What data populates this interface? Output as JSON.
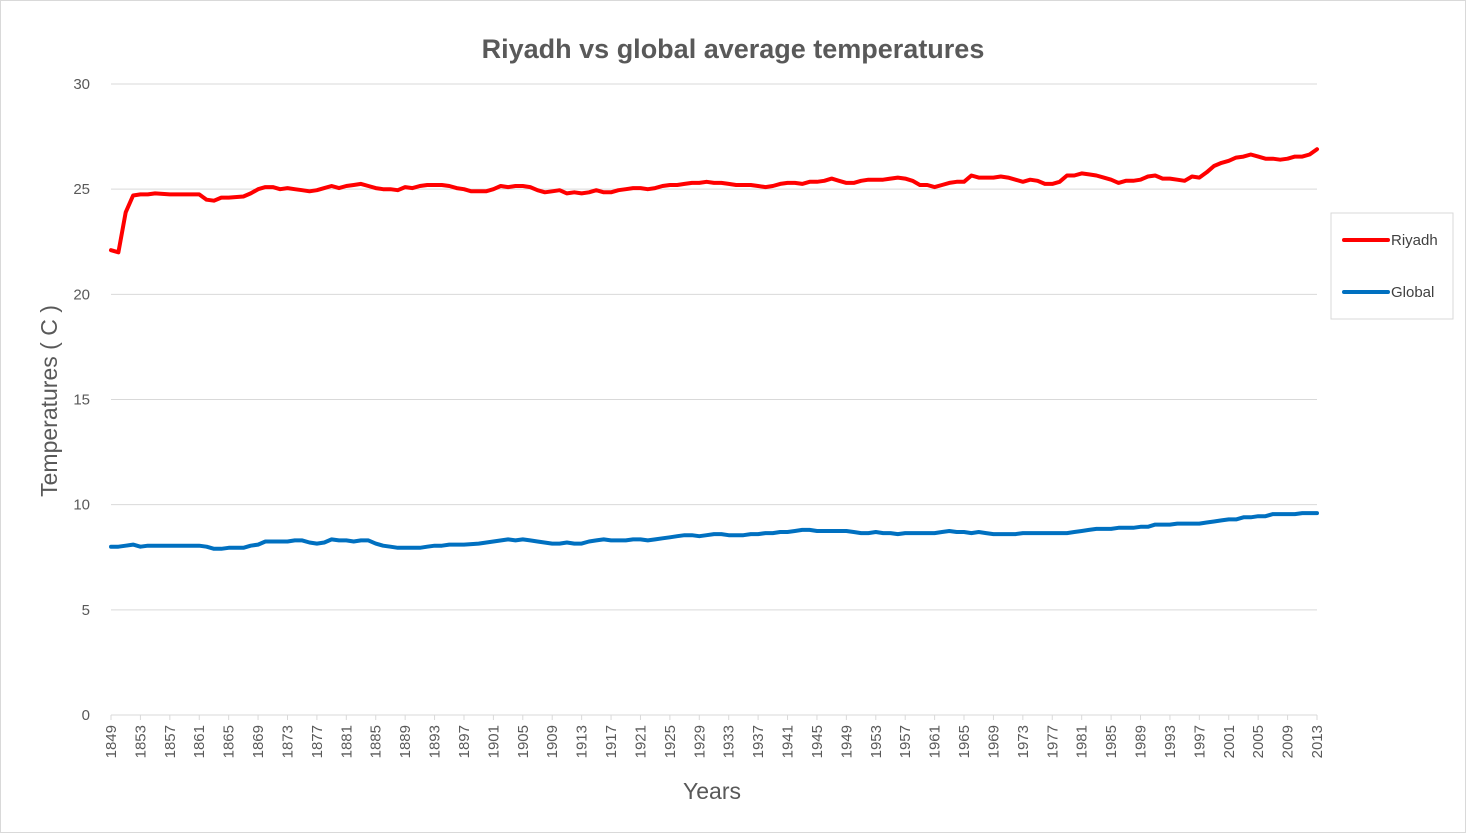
{
  "chart_data": {
    "type": "line",
    "title": "Riyadh vs global average temperatures",
    "xlabel": "Years",
    "ylabel": "Temperatures ( C )",
    "ylim": [
      0,
      30
    ],
    "yticks": [
      0,
      5,
      10,
      15,
      20,
      25,
      30
    ],
    "xlim": [
      1849,
      2013
    ],
    "xticks": [
      1849,
      1853,
      1857,
      1861,
      1865,
      1869,
      1873,
      1877,
      1881,
      1885,
      1889,
      1893,
      1897,
      1901,
      1905,
      1909,
      1913,
      1917,
      1921,
      1925,
      1929,
      1933,
      1937,
      1941,
      1945,
      1949,
      1953,
      1957,
      1961,
      1965,
      1969,
      1973,
      1977,
      1981,
      1985,
      1989,
      1993,
      1997,
      2001,
      2005,
      2009,
      2013
    ],
    "grid": true,
    "legend_position": "right",
    "series": [
      {
        "name": "Riyadh",
        "color": "#ff0000",
        "points": [
          [
            1849,
            22.1
          ],
          [
            1850,
            22.0
          ],
          [
            1851,
            23.9
          ],
          [
            1852,
            24.7
          ],
          [
            1853,
            24.75
          ],
          [
            1854,
            24.75
          ],
          [
            1855,
            24.8
          ],
          [
            1857,
            24.75
          ],
          [
            1861,
            24.75
          ],
          [
            1862,
            24.5
          ],
          [
            1863,
            24.45
          ],
          [
            1864,
            24.6
          ],
          [
            1865,
            24.6
          ],
          [
            1867,
            24.65
          ],
          [
            1868,
            24.8
          ],
          [
            1869,
            25.0
          ],
          [
            1870,
            25.1
          ],
          [
            1871,
            25.1
          ],
          [
            1872,
            25.0
          ],
          [
            1873,
            25.05
          ],
          [
            1874,
            25.0
          ],
          [
            1875,
            24.95
          ],
          [
            1876,
            24.9
          ],
          [
            1877,
            24.95
          ],
          [
            1878,
            25.05
          ],
          [
            1879,
            25.15
          ],
          [
            1880,
            25.05
          ],
          [
            1881,
            25.15
          ],
          [
            1882,
            25.2
          ],
          [
            1883,
            25.25
          ],
          [
            1884,
            25.15
          ],
          [
            1885,
            25.05
          ],
          [
            1886,
            25.0
          ],
          [
            1887,
            25.0
          ],
          [
            1888,
            24.95
          ],
          [
            1889,
            25.1
          ],
          [
            1890,
            25.05
          ],
          [
            1891,
            25.15
          ],
          [
            1892,
            25.2
          ],
          [
            1893,
            25.2
          ],
          [
            1894,
            25.2
          ],
          [
            1895,
            25.15
          ],
          [
            1896,
            25.05
          ],
          [
            1897,
            25.0
          ],
          [
            1898,
            24.9
          ],
          [
            1899,
            24.9
          ],
          [
            1900,
            24.9
          ],
          [
            1901,
            25.0
          ],
          [
            1902,
            25.15
          ],
          [
            1903,
            25.1
          ],
          [
            1904,
            25.15
          ],
          [
            1905,
            25.15
          ],
          [
            1906,
            25.1
          ],
          [
            1907,
            24.95
          ],
          [
            1908,
            24.85
          ],
          [
            1909,
            24.9
          ],
          [
            1910,
            24.95
          ],
          [
            1911,
            24.8
          ],
          [
            1912,
            24.85
          ],
          [
            1913,
            24.8
          ],
          [
            1914,
            24.85
          ],
          [
            1915,
            24.95
          ],
          [
            1916,
            24.85
          ],
          [
            1917,
            24.85
          ],
          [
            1918,
            24.95
          ],
          [
            1919,
            25.0
          ],
          [
            1920,
            25.05
          ],
          [
            1921,
            25.05
          ],
          [
            1922,
            25.0
          ],
          [
            1923,
            25.05
          ],
          [
            1924,
            25.15
          ],
          [
            1925,
            25.2
          ],
          [
            1926,
            25.2
          ],
          [
            1927,
            25.25
          ],
          [
            1928,
            25.3
          ],
          [
            1929,
            25.3
          ],
          [
            1930,
            25.35
          ],
          [
            1931,
            25.3
          ],
          [
            1932,
            25.3
          ],
          [
            1933,
            25.25
          ],
          [
            1934,
            25.2
          ],
          [
            1935,
            25.2
          ],
          [
            1936,
            25.2
          ],
          [
            1937,
            25.15
          ],
          [
            1938,
            25.1
          ],
          [
            1939,
            25.15
          ],
          [
            1940,
            25.25
          ],
          [
            1941,
            25.3
          ],
          [
            1942,
            25.3
          ],
          [
            1943,
            25.25
          ],
          [
            1944,
            25.35
          ],
          [
            1945,
            25.35
          ],
          [
            1946,
            25.4
          ],
          [
            1947,
            25.5
          ],
          [
            1948,
            25.4
          ],
          [
            1949,
            25.3
          ],
          [
            1950,
            25.3
          ],
          [
            1951,
            25.4
          ],
          [
            1952,
            25.45
          ],
          [
            1953,
            25.45
          ],
          [
            1954,
            25.45
          ],
          [
            1955,
            25.5
          ],
          [
            1956,
            25.55
          ],
          [
            1957,
            25.5
          ],
          [
            1958,
            25.4
          ],
          [
            1959,
            25.2
          ],
          [
            1960,
            25.2
          ],
          [
            1961,
            25.1
          ],
          [
            1962,
            25.2
          ],
          [
            1963,
            25.3
          ],
          [
            1964,
            25.35
          ],
          [
            1965,
            25.35
          ],
          [
            1966,
            25.65
          ],
          [
            1967,
            25.55
          ],
          [
            1968,
            25.55
          ],
          [
            1969,
            25.55
          ],
          [
            1970,
            25.6
          ],
          [
            1971,
            25.55
          ],
          [
            1972,
            25.45
          ],
          [
            1973,
            25.35
          ],
          [
            1974,
            25.45
          ],
          [
            1975,
            25.4
          ],
          [
            1976,
            25.25
          ],
          [
            1977,
            25.25
          ],
          [
            1978,
            25.35
          ],
          [
            1979,
            25.65
          ],
          [
            1980,
            25.65
          ],
          [
            1981,
            25.75
          ],
          [
            1982,
            25.7
          ],
          [
            1983,
            25.65
          ],
          [
            1984,
            25.55
          ],
          [
            1985,
            25.45
          ],
          [
            1986,
            25.3
          ],
          [
            1987,
            25.4
          ],
          [
            1988,
            25.4
          ],
          [
            1989,
            25.45
          ],
          [
            1990,
            25.6
          ],
          [
            1991,
            25.65
          ],
          [
            1992,
            25.5
          ],
          [
            1993,
            25.5
          ],
          [
            1994,
            25.45
          ],
          [
            1995,
            25.4
          ],
          [
            1996,
            25.6
          ],
          [
            1997,
            25.55
          ],
          [
            1998,
            25.8
          ],
          [
            1999,
            26.1
          ],
          [
            2000,
            26.25
          ],
          [
            2001,
            26.35
          ],
          [
            2002,
            26.5
          ],
          [
            2003,
            26.55
          ],
          [
            2004,
            26.65
          ],
          [
            2005,
            26.55
          ],
          [
            2006,
            26.45
          ],
          [
            2007,
            26.45
          ],
          [
            2008,
            26.4
          ],
          [
            2009,
            26.45
          ],
          [
            2010,
            26.55
          ],
          [
            2011,
            26.55
          ],
          [
            2012,
            26.65
          ],
          [
            2013,
            26.9
          ]
        ]
      },
      {
        "name": "Global",
        "color": "#0070c0",
        "points": [
          [
            1849,
            8.0
          ],
          [
            1850,
            8.0
          ],
          [
            1851,
            8.05
          ],
          [
            1852,
            8.1
          ],
          [
            1853,
            8.0
          ],
          [
            1854,
            8.05
          ],
          [
            1857,
            8.05
          ],
          [
            1861,
            8.05
          ],
          [
            1862,
            8.0
          ],
          [
            1863,
            7.9
          ],
          [
            1864,
            7.9
          ],
          [
            1865,
            7.95
          ],
          [
            1867,
            7.95
          ],
          [
            1868,
            8.05
          ],
          [
            1869,
            8.1
          ],
          [
            1870,
            8.25
          ],
          [
            1871,
            8.25
          ],
          [
            1873,
            8.25
          ],
          [
            1874,
            8.3
          ],
          [
            1875,
            8.3
          ],
          [
            1876,
            8.2
          ],
          [
            1877,
            8.15
          ],
          [
            1878,
            8.2
          ],
          [
            1879,
            8.35
          ],
          [
            1880,
            8.3
          ],
          [
            1881,
            8.3
          ],
          [
            1882,
            8.25
          ],
          [
            1883,
            8.3
          ],
          [
            1884,
            8.3
          ],
          [
            1885,
            8.15
          ],
          [
            1886,
            8.05
          ],
          [
            1887,
            8.0
          ],
          [
            1888,
            7.95
          ],
          [
            1889,
            7.95
          ],
          [
            1891,
            7.95
          ],
          [
            1892,
            8.0
          ],
          [
            1893,
            8.05
          ],
          [
            1894,
            8.05
          ],
          [
            1895,
            8.1
          ],
          [
            1897,
            8.1
          ],
          [
            1899,
            8.15
          ],
          [
            1901,
            8.25
          ],
          [
            1903,
            8.35
          ],
          [
            1904,
            8.3
          ],
          [
            1905,
            8.35
          ],
          [
            1906,
            8.3
          ],
          [
            1907,
            8.25
          ],
          [
            1909,
            8.15
          ],
          [
            1910,
            8.15
          ],
          [
            1911,
            8.2
          ],
          [
            1912,
            8.15
          ],
          [
            1913,
            8.15
          ],
          [
            1914,
            8.25
          ],
          [
            1915,
            8.3
          ],
          [
            1916,
            8.35
          ],
          [
            1917,
            8.3
          ],
          [
            1919,
            8.3
          ],
          [
            1920,
            8.35
          ],
          [
            1921,
            8.35
          ],
          [
            1922,
            8.3
          ],
          [
            1923,
            8.35
          ],
          [
            1924,
            8.4
          ],
          [
            1925,
            8.45
          ],
          [
            1926,
            8.5
          ],
          [
            1927,
            8.55
          ],
          [
            1928,
            8.55
          ],
          [
            1929,
            8.5
          ],
          [
            1930,
            8.55
          ],
          [
            1931,
            8.6
          ],
          [
            1932,
            8.6
          ],
          [
            1933,
            8.55
          ],
          [
            1935,
            8.55
          ],
          [
            1936,
            8.6
          ],
          [
            1937,
            8.6
          ],
          [
            1938,
            8.65
          ],
          [
            1939,
            8.65
          ],
          [
            1940,
            8.7
          ],
          [
            1941,
            8.7
          ],
          [
            1942,
            8.75
          ],
          [
            1943,
            8.8
          ],
          [
            1944,
            8.8
          ],
          [
            1945,
            8.75
          ],
          [
            1949,
            8.75
          ],
          [
            1950,
            8.7
          ],
          [
            1951,
            8.65
          ],
          [
            1952,
            8.65
          ],
          [
            1953,
            8.7
          ],
          [
            1954,
            8.65
          ],
          [
            1955,
            8.65
          ],
          [
            1956,
            8.6
          ],
          [
            1957,
            8.65
          ],
          [
            1961,
            8.65
          ],
          [
            1962,
            8.7
          ],
          [
            1963,
            8.75
          ],
          [
            1964,
            8.7
          ],
          [
            1965,
            8.7
          ],
          [
            1966,
            8.65
          ],
          [
            1967,
            8.7
          ],
          [
            1968,
            8.65
          ],
          [
            1969,
            8.6
          ],
          [
            1972,
            8.6
          ],
          [
            1973,
            8.65
          ],
          [
            1979,
            8.65
          ],
          [
            1980,
            8.7
          ],
          [
            1981,
            8.75
          ],
          [
            1982,
            8.8
          ],
          [
            1983,
            8.85
          ],
          [
            1984,
            8.85
          ],
          [
            1985,
            8.85
          ],
          [
            1986,
            8.9
          ],
          [
            1987,
            8.9
          ],
          [
            1988,
            8.9
          ],
          [
            1989,
            8.95
          ],
          [
            1990,
            8.95
          ],
          [
            1991,
            9.05
          ],
          [
            1992,
            9.05
          ],
          [
            1993,
            9.05
          ],
          [
            1994,
            9.1
          ],
          [
            1997,
            9.1
          ],
          [
            1998,
            9.15
          ],
          [
            1999,
            9.2
          ],
          [
            2000,
            9.25
          ],
          [
            2001,
            9.3
          ],
          [
            2002,
            9.3
          ],
          [
            2003,
            9.4
          ],
          [
            2004,
            9.4
          ],
          [
            2005,
            9.45
          ],
          [
            2006,
            9.45
          ],
          [
            2007,
            9.55
          ],
          [
            2010,
            9.55
          ],
          [
            2011,
            9.6
          ],
          [
            2013,
            9.6
          ]
        ]
      }
    ]
  }
}
